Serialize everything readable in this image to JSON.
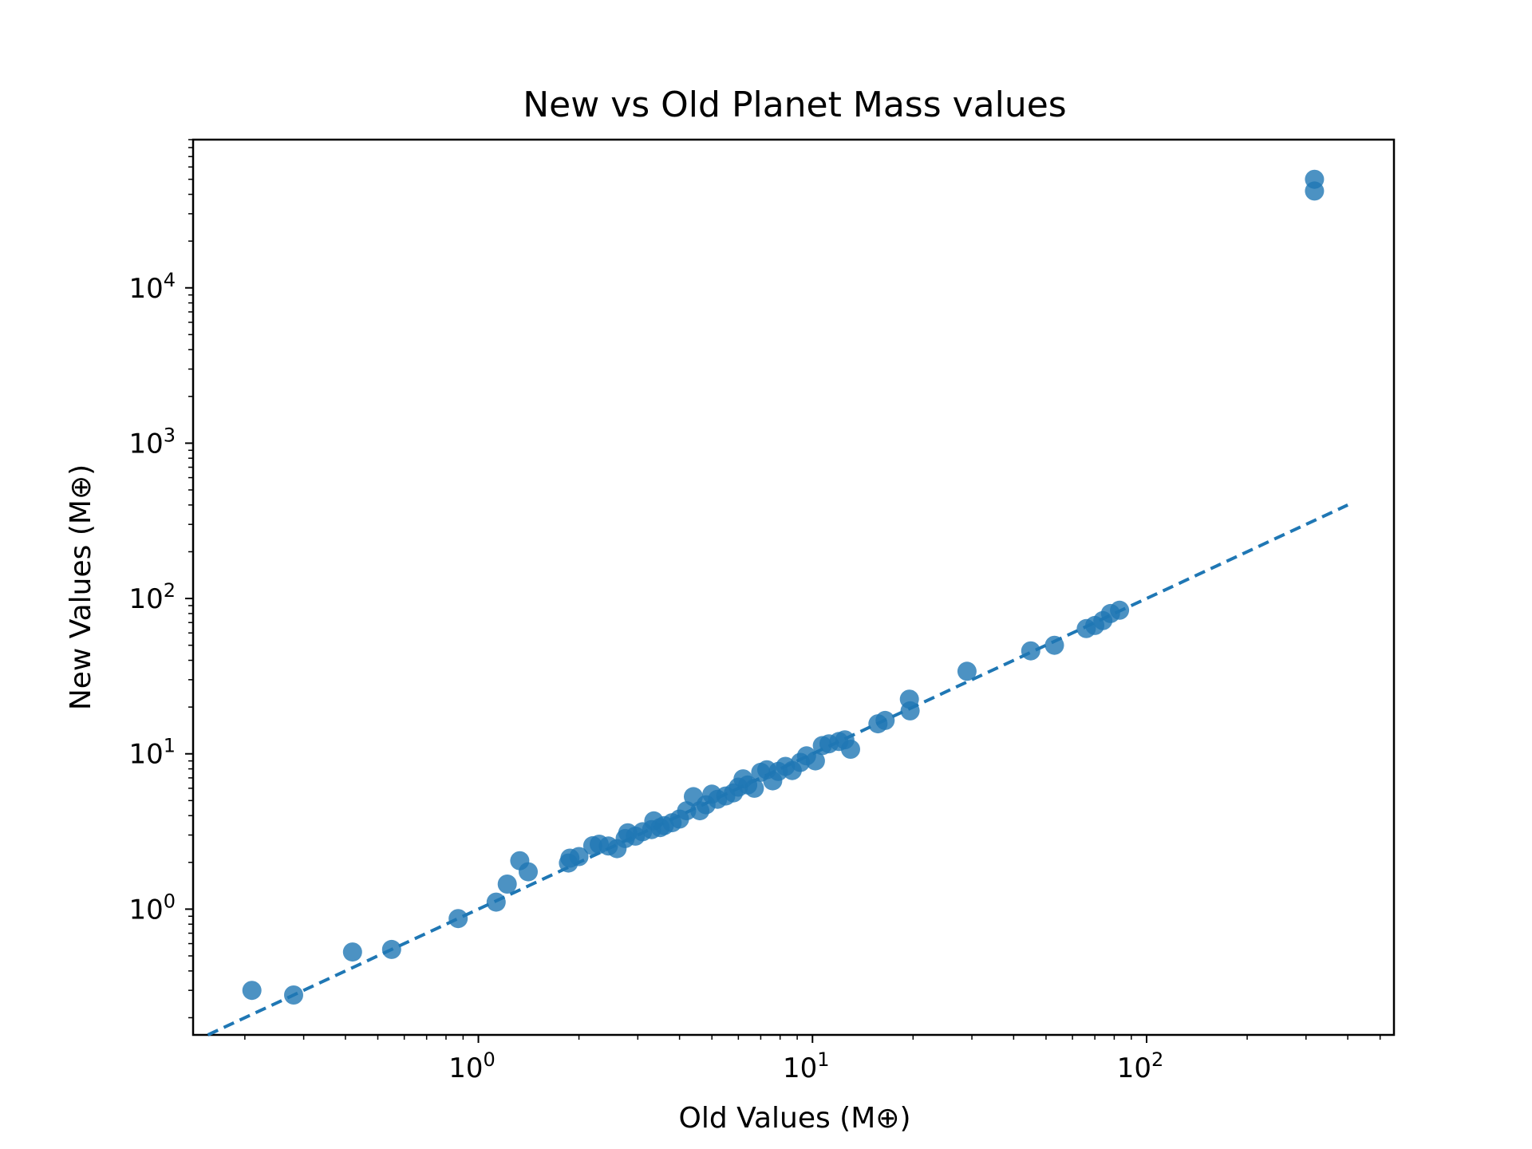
{
  "chart_data": {
    "type": "scatter",
    "title": "New vs Old Planet Mass values",
    "xlabel": "Old Values (M⊕)",
    "ylabel": "New Values (M⊕)",
    "xscale": "log",
    "yscale": "log",
    "xlim": [
      0.14,
      550
    ],
    "ylim": [
      0.155,
      90000
    ],
    "grid": false,
    "marker_color": "#1f77b4",
    "line_color": "#1f77b4",
    "x_ticks": [
      {
        "base": "10",
        "exp": "0"
      },
      {
        "base": "10",
        "exp": "1"
      },
      {
        "base": "10",
        "exp": "2"
      }
    ],
    "y_ticks": [
      {
        "base": "10",
        "exp": "0"
      },
      {
        "base": "10",
        "exp": "1"
      },
      {
        "base": "10",
        "exp": "2"
      },
      {
        "base": "10",
        "exp": "3"
      },
      {
        "base": "10",
        "exp": "4"
      }
    ],
    "reference_line": {
      "style": "dashed",
      "x": [
        0.14,
        400
      ],
      "y": [
        0.14,
        400
      ]
    },
    "series": [
      {
        "points": [
          [
            0.21,
            0.3
          ],
          [
            0.28,
            0.28
          ],
          [
            0.42,
            0.53
          ],
          [
            0.55,
            0.55
          ],
          [
            0.87,
            0.87
          ],
          [
            1.13,
            1.11
          ],
          [
            1.22,
            1.45
          ],
          [
            1.33,
            2.05
          ],
          [
            1.41,
            1.74
          ],
          [
            1.86,
            1.98
          ],
          [
            1.88,
            2.13
          ],
          [
            2.0,
            2.18
          ],
          [
            2.2,
            2.56
          ],
          [
            2.3,
            2.62
          ],
          [
            2.45,
            2.55
          ],
          [
            2.6,
            2.45
          ],
          [
            2.75,
            2.85
          ],
          [
            2.8,
            3.1
          ],
          [
            2.95,
            2.95
          ],
          [
            3.1,
            3.15
          ],
          [
            3.3,
            3.25
          ],
          [
            3.35,
            3.7
          ],
          [
            3.5,
            3.35
          ],
          [
            3.6,
            3.45
          ],
          [
            3.8,
            3.6
          ],
          [
            4.0,
            3.8
          ],
          [
            4.2,
            4.3
          ],
          [
            4.4,
            5.3
          ],
          [
            4.6,
            4.3
          ],
          [
            4.8,
            4.7
          ],
          [
            5.0,
            5.5
          ],
          [
            5.2,
            5.1
          ],
          [
            5.5,
            5.35
          ],
          [
            5.8,
            5.6
          ],
          [
            6.0,
            6.1
          ],
          [
            6.2,
            6.9
          ],
          [
            6.4,
            6.3
          ],
          [
            6.7,
            6.0
          ],
          [
            7.0,
            7.6
          ],
          [
            7.3,
            7.9
          ],
          [
            7.6,
            6.7
          ],
          [
            7.9,
            7.7
          ],
          [
            8.3,
            8.3
          ],
          [
            8.7,
            7.8
          ],
          [
            9.2,
            8.8
          ],
          [
            9.6,
            9.7
          ],
          [
            10.2,
            9.0
          ],
          [
            10.7,
            11.3
          ],
          [
            11.2,
            11.6
          ],
          [
            12.0,
            12.0
          ],
          [
            12.5,
            12.3
          ],
          [
            13.0,
            10.7
          ],
          [
            15.7,
            15.6
          ],
          [
            16.5,
            16.4
          ],
          [
            19.5,
            22.5
          ],
          [
            19.6,
            18.9
          ],
          [
            29.0,
            34.0
          ],
          [
            45.0,
            46.0
          ],
          [
            53.0,
            50.0
          ],
          [
            66.0,
            64.0
          ],
          [
            70.0,
            67.0
          ],
          [
            74.0,
            72.0
          ],
          [
            78.0,
            80.0
          ],
          [
            83.0,
            84.0
          ],
          [
            318.0,
            50000.0
          ],
          [
            318.0,
            42000.0
          ]
        ]
      }
    ]
  }
}
